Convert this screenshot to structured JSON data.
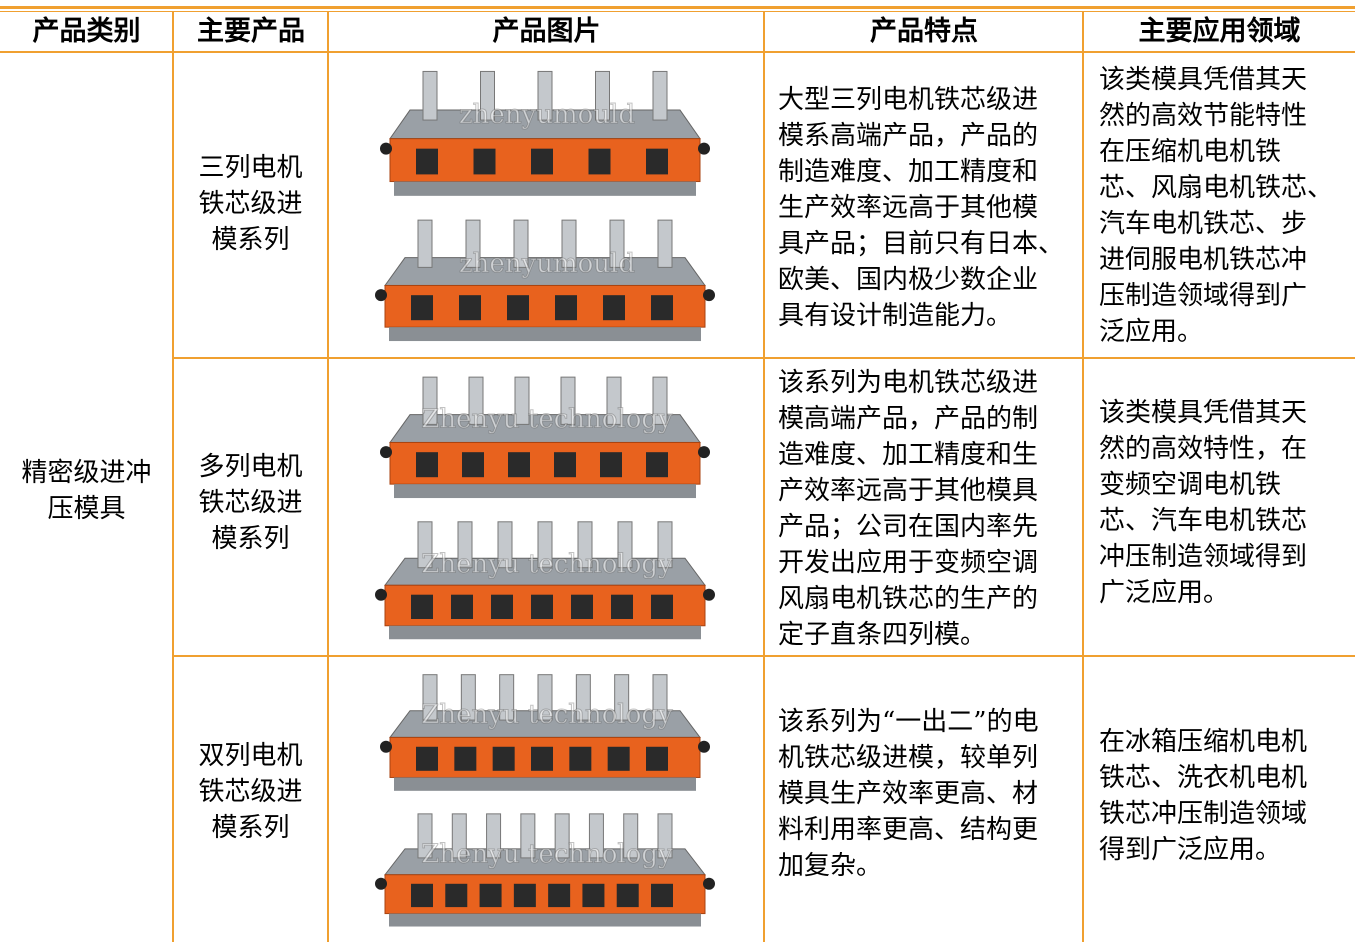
{
  "table": {
    "header": [
      "产品类别",
      "主要产品",
      "产品图片",
      "产品特点",
      "主要应用领域"
    ],
    "category": [
      "精密级进冲",
      "压模具"
    ],
    "rows": [
      {
        "product": [
          "三列电机",
          "铁芯级进",
          "模系列"
        ],
        "watermark": "zhenyumould",
        "features": [
          "大型三列电机铁芯级进",
          "模系高端产品，产品的",
          "制造难度、加工精度和",
          "生产效率远高于其他模",
          "具产品；目前只有日本、",
          "欧美、国内极少数企业",
          "具有设计制造能力。"
        ],
        "applications": [
          "该类模具凭借其天",
          "然的高效节能特性",
          "在压缩机电机铁",
          "芯、风扇电机铁芯、",
          "汽车电机铁芯、步",
          "进伺服电机铁芯冲",
          "压制造领域得到广",
          "泛应用。"
        ]
      },
      {
        "product": [
          "多列电机",
          "铁芯级进",
          "模系列"
        ],
        "watermark": "Zhenyu technology",
        "features": [
          "该系列为电机铁芯级进",
          "模高端产品，产品的制",
          "造难度、加工精度和生",
          "产效率远高于其他模具",
          "产品；公司在国内率先",
          "开发出应用于变频空调",
          "风扇电机铁芯的生产的",
          "定子直条四列模。"
        ],
        "applications": [
          "该类模具凭借其天",
          "然的高效特性，在",
          "变频空调电机铁",
          "芯、汽车电机铁芯",
          "冲压制造领域得到",
          "广泛应用。"
        ]
      },
      {
        "product": [
          "双列电机",
          "铁芯级进",
          "模系列"
        ],
        "watermark": "Zhenyu technology",
        "features": [
          "该系列为“一出二”的电",
          "机铁芯级进模，较单列",
          "模具生产效率更高、材",
          "料利用率更高、结构更",
          "加复杂。"
        ],
        "applications": [
          "在冰箱压缩机电机",
          "铁芯、洗衣机电机",
          "铁芯冲压制造领域",
          "得到广泛应用。"
        ]
      }
    ]
  }
}
